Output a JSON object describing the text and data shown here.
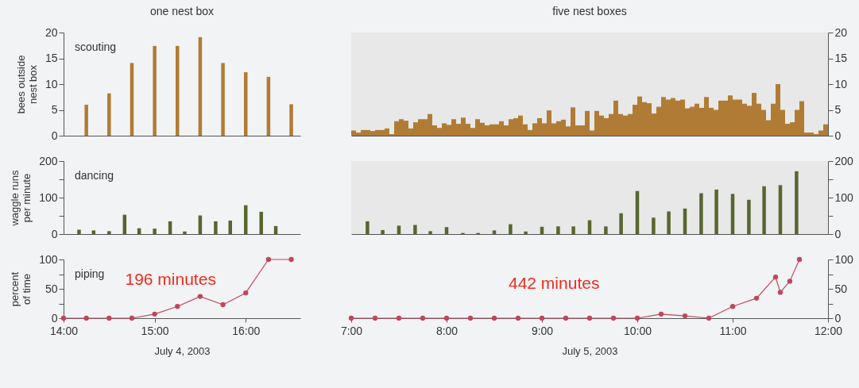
{
  "chart_data": [
    {
      "type": "bar",
      "title": "one nest box",
      "ylabel": "bees outside\nnest box",
      "annotations": [
        "scouting"
      ],
      "color": "#b07c35",
      "tick_labels": "y",
      "xlim": [
        14,
        16.6
      ],
      "ylim": [
        0,
        20
      ],
      "yticks": [
        0,
        5,
        10,
        15,
        20
      ],
      "x": [
        14.25,
        14.5,
        14.75,
        15,
        15.25,
        15.5,
        15.75,
        16,
        16.25,
        16.5
      ],
      "values": [
        6,
        8.2,
        14.1,
        17.4,
        17.4,
        19.1,
        14.1,
        12.3,
        11.4,
        6.1
      ]
    },
    {
      "type": "bar",
      "title": "five nest boxes",
      "color": "#b07c35",
      "tick_labels": "y",
      "xlim": [
        7,
        12
      ],
      "ylim": [
        0,
        20
      ],
      "yticks": [
        0,
        5,
        10,
        15,
        20
      ],
      "x": [
        7.025,
        7.075,
        7.125,
        7.175,
        7.225,
        7.275,
        7.325,
        7.375,
        7.425,
        7.475,
        7.525,
        7.575,
        7.625,
        7.675,
        7.725,
        7.775,
        7.825,
        7.875,
        7.925,
        7.975,
        8.025,
        8.075,
        8.125,
        8.175,
        8.225,
        8.275,
        8.325,
        8.375,
        8.425,
        8.475,
        8.525,
        8.575,
        8.625,
        8.675,
        8.725,
        8.775,
        8.825,
        8.875,
        8.925,
        8.975,
        9.025,
        9.075,
        9.125,
        9.175,
        9.225,
        9.275,
        9.325,
        9.375,
        9.425,
        9.475,
        9.525,
        9.575,
        9.625,
        9.675,
        9.725,
        9.775,
        9.825,
        9.875,
        9.925,
        9.975,
        10.025,
        10.075,
        10.125,
        10.175,
        10.225,
        10.275,
        10.325,
        10.375,
        10.425,
        10.475,
        10.525,
        10.575,
        10.625,
        10.675,
        10.725,
        10.775,
        10.825,
        10.875,
        10.925,
        10.975,
        11.025,
        11.075,
        11.125,
        11.175,
        11.225,
        11.275,
        11.325,
        11.375,
        11.425,
        11.475,
        11.525,
        11.575,
        11.625,
        11.675,
        11.725,
        11.775,
        11.825,
        11.875,
        11.925,
        11.975
      ],
      "values": [
        1,
        0.6,
        1.1,
        1.1,
        0.9,
        1.1,
        1.1,
        1.4,
        0.3,
        2.8,
        3.2,
        2.9,
        1.4,
        2.6,
        3.2,
        3.2,
        4.2,
        2,
        1.5,
        2.4,
        2.1,
        3.2,
        2.3,
        3.5,
        2.3,
        1.5,
        3.2,
        2.5,
        2,
        2.2,
        2.2,
        2.8,
        2,
        3.2,
        3.4,
        3.9,
        2.2,
        1.1,
        2.4,
        3.4,
        2.4,
        4.9,
        2.4,
        2.8,
        3.1,
        1.8,
        5.5,
        2,
        2,
        4.8,
        1,
        4.8,
        3.9,
        3.4,
        4.2,
        6.8,
        4.2,
        3.9,
        4.2,
        6,
        7.6,
        6.5,
        6.3,
        4.3,
        5.6,
        7.5,
        7,
        7.3,
        6.8,
        7,
        5.3,
        5.6,
        6.2,
        5.4,
        7.5,
        5.4,
        5,
        6.8,
        6.8,
        7.8,
        7,
        7,
        6.2,
        5.8,
        8.3,
        6.2,
        5,
        3,
        6.2,
        10,
        5,
        2.3,
        2.6,
        5,
        6.7,
        0.6,
        0.6,
        0.3,
        1,
        2.2
      ]
    },
    {
      "type": "bar",
      "ylabel": "waggle runs\nper minute",
      "annotations": [
        "dancing"
      ],
      "color": "#56672f",
      "tick_labels": "y",
      "xlim": [
        14,
        16.6
      ],
      "ylim": [
        0,
        200
      ],
      "yticks": [
        0,
        {
          "value": 50,
          "label": null
        },
        100,
        {
          "value": 150,
          "label": null
        },
        200
      ],
      "x": [
        14.17,
        14.33,
        14.5,
        14.67,
        14.83,
        15,
        15.17,
        15.33,
        15.5,
        15.67,
        15.83,
        16,
        16.17,
        16.33
      ],
      "values": [
        12,
        10,
        8,
        53,
        16,
        15,
        35,
        7,
        51,
        35,
        37,
        79,
        61,
        22
      ]
    },
    {
      "type": "bar",
      "color": "#56672f",
      "tick_labels": "y",
      "xlim": [
        7,
        12
      ],
      "ylim": [
        0,
        200
      ],
      "yticks": [
        0,
        {
          "value": 50,
          "label": null
        },
        100,
        {
          "value": 150,
          "label": null
        },
        200
      ],
      "x": [
        7.17,
        7.33,
        7.5,
        7.67,
        7.83,
        8,
        8.17,
        8.33,
        8.5,
        8.67,
        8.83,
        9,
        9.17,
        9.33,
        9.5,
        9.67,
        9.83,
        10,
        10.17,
        10.33,
        10.5,
        10.67,
        10.83,
        11,
        11.17,
        11.33,
        11.5,
        11.67
      ],
      "values": [
        35,
        11,
        23,
        25,
        8,
        19,
        3,
        3,
        10,
        27,
        7,
        20,
        21,
        21,
        38,
        21,
        57,
        118,
        45,
        62,
        70,
        112,
        122,
        110,
        94,
        131,
        134,
        172
      ]
    },
    {
      "type": "line",
      "ylabel": "percent\nof time",
      "xlabel": "July 4, 2003",
      "annotations": [
        "piping",
        "196 minutes"
      ],
      "color": "#c0475a",
      "marker": "circle",
      "xlim": [
        14,
        16.6
      ],
      "ylim": [
        0,
        100
      ],
      "yticks": [
        0,
        {
          "value": 25,
          "label": null
        },
        50,
        {
          "value": 75,
          "label": null
        },
        100
      ],
      "xticks": [
        {
          "value": 14,
          "label": "14:00"
        },
        {
          "value": 15,
          "label": "15:00"
        },
        {
          "value": 16,
          "label": "16:00"
        }
      ],
      "x": [
        14,
        14.25,
        14.5,
        14.75,
        15,
        15.25,
        15.5,
        15.75,
        16,
        16.25,
        16.5
      ],
      "values": [
        0,
        0,
        0,
        0,
        7,
        20,
        37,
        23,
        43,
        100,
        100
      ]
    },
    {
      "type": "line",
      "xlabel": "July 5, 2003",
      "annotations": [
        "442 minutes"
      ],
      "color": "#c0475a",
      "marker": "circle",
      "xlim": [
        7,
        12
      ],
      "ylim": [
        0,
        100
      ],
      "yticks": [
        0,
        {
          "value": 25,
          "label": null
        },
        50,
        {
          "value": 75,
          "label": null
        },
        100
      ],
      "xticks": [
        {
          "value": 7,
          "label": "7:00"
        },
        {
          "value": 8,
          "label": "8:00"
        },
        {
          "value": 9,
          "label": "9:00"
        },
        {
          "value": 10,
          "label": "10:00"
        },
        {
          "value": 11,
          "label": "11:00"
        },
        {
          "value": 12,
          "label": "12:00"
        }
      ],
      "x": [
        7,
        7.25,
        7.5,
        7.75,
        8,
        8.25,
        8.5,
        8.75,
        9,
        9.25,
        9.5,
        9.75,
        10,
        10.25,
        10.5,
        10.75,
        11,
        11.25,
        11.45,
        11.5,
        11.6,
        11.7
      ],
      "values": [
        0,
        0,
        0,
        0,
        0,
        0,
        0,
        0,
        0,
        0,
        0,
        0,
        0,
        7,
        4,
        0,
        20,
        34,
        70,
        44,
        63,
        100
      ]
    }
  ]
}
